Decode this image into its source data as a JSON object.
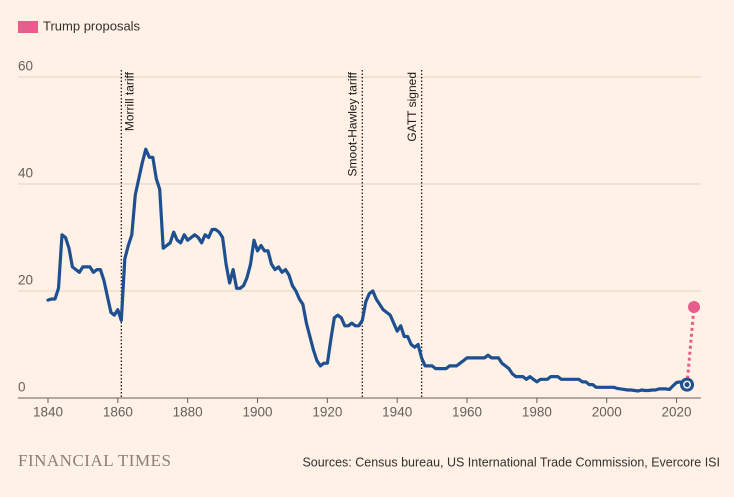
{
  "chart_data": {
    "type": "line",
    "xlim": [
      1840,
      2027
    ],
    "ylim": [
      0,
      60
    ],
    "xticks": [
      1840,
      1860,
      1880,
      1900,
      1920,
      1940,
      1960,
      1980,
      2000,
      2020
    ],
    "yticks": [
      0,
      20,
      40,
      60
    ],
    "grid": true,
    "legend": "top-left",
    "series": [
      {
        "color": "#1d4f91",
        "x": [
          1840,
          1841,
          1842,
          1843,
          1844,
          1845,
          1846,
          1847,
          1848,
          1849,
          1850,
          1851,
          1852,
          1853,
          1854,
          1855,
          1856,
          1857,
          1858,
          1859,
          1860,
          1861,
          1862,
          1863,
          1864,
          1865,
          1866,
          1867,
          1868,
          1869,
          1870,
          1871,
          1872,
          1873,
          1874,
          1875,
          1876,
          1877,
          1878,
          1879,
          1880,
          1881,
          1882,
          1883,
          1884,
          1885,
          1886,
          1887,
          1888,
          1889,
          1890,
          1891,
          1892,
          1893,
          1894,
          1895,
          1896,
          1897,
          1898,
          1899,
          1900,
          1901,
          1902,
          1903,
          1904,
          1905,
          1906,
          1907,
          1908,
          1909,
          1910,
          1911,
          1912,
          1913,
          1914,
          1915,
          1916,
          1917,
          1918,
          1919,
          1920,
          1921,
          1922,
          1923,
          1924,
          1925,
          1926,
          1927,
          1928,
          1929,
          1930,
          1931,
          1932,
          1933,
          1934,
          1935,
          1936,
          1937,
          1938,
          1939,
          1940,
          1941,
          1942,
          1943,
          1944,
          1945,
          1946,
          1947,
          1948,
          1949,
          1950,
          1951,
          1952,
          1953,
          1954,
          1955,
          1956,
          1957,
          1958,
          1959,
          1960,
          1961,
          1962,
          1963,
          1964,
          1965,
          1966,
          1967,
          1968,
          1969,
          1970,
          1971,
          1972,
          1973,
          1974,
          1975,
          1976,
          1977,
          1978,
          1979,
          1980,
          1981,
          1982,
          1983,
          1984,
          1985,
          1986,
          1987,
          1988,
          1989,
          1990,
          1991,
          1992,
          1993,
          1994,
          1995,
          1996,
          1997,
          1998,
          1999,
          2000,
          2001,
          2002,
          2003,
          2004,
          2005,
          2006,
          2007,
          2008,
          2009,
          2010,
          2011,
          2012,
          2013,
          2014,
          2015,
          2016,
          2017,
          2018,
          2019,
          2020,
          2021,
          2022,
          2023
        ],
        "values": [
          18.3,
          18.5,
          18.5,
          20.5,
          30.5,
          30,
          28,
          24.5,
          24,
          23.5,
          24.5,
          24.5,
          24.5,
          23.5,
          24,
          24,
          22,
          19,
          16,
          15.5,
          16.5,
          14.5,
          26,
          28.5,
          30.5,
          38,
          41,
          44,
          46.5,
          45,
          45,
          41,
          39,
          28,
          28.5,
          29,
          31,
          29.5,
          29,
          30.5,
          29.5,
          30,
          30.5,
          30,
          29,
          30.5,
          30,
          31.5,
          31.5,
          31,
          30,
          25,
          21.5,
          24,
          20.5,
          20.5,
          21,
          22.5,
          25,
          29.5,
          27.5,
          28.5,
          27.5,
          27.5,
          25,
          24,
          24.5,
          23.5,
          24,
          23,
          21,
          20,
          18.5,
          17.5,
          14,
          11.5,
          9,
          7,
          6,
          6.5,
          6.5,
          11,
          15,
          15.5,
          15,
          13.5,
          13.5,
          14,
          13.5,
          13.5,
          14.5,
          18,
          19.5,
          20,
          18.5,
          17.5,
          16.5,
          16,
          15.5,
          14,
          12.5,
          13.5,
          11.5,
          11.5,
          10,
          9.5,
          10,
          7.5,
          6,
          6,
          6,
          5.5,
          5.5,
          5.5,
          5.5,
          6,
          6,
          6,
          6.5,
          7,
          7.5,
          7.5,
          7.5,
          7.5,
          7.5,
          7.5,
          8,
          7.5,
          7.5,
          7.5,
          6.5,
          6,
          5.5,
          4.5,
          4,
          4,
          4,
          3.5,
          4,
          3.5,
          3,
          3.5,
          3.5,
          3.5,
          4,
          4,
          4,
          3.5,
          3.5,
          3.5,
          3.5,
          3.5,
          3.5,
          3,
          3,
          2.5,
          2.5,
          2,
          2,
          2,
          2,
          2,
          2,
          1.8,
          1.7,
          1.6,
          1.5,
          1.5,
          1.4,
          1.3,
          1.5,
          1.4,
          1.4,
          1.5,
          1.5,
          1.7,
          1.7,
          1.7,
          1.6,
          2.3,
          2.9,
          3,
          2.7,
          2.5
        ]
      },
      {
        "name": "Trump proposals",
        "color": "#e95d8c",
        "dashed": true,
        "x": [
          2023,
          2025
        ],
        "values": [
          2.5,
          17
        ]
      }
    ],
    "annotations": [
      {
        "x": 1861,
        "text": "Morrill tariff"
      },
      {
        "x": 1930,
        "text": "Smoot-Hawley tariff"
      },
      {
        "x": 1947,
        "text": "GATT signed"
      }
    ],
    "brand": "FINANCIAL TIMES",
    "source": "Sources: Census bureau, US International Trade Commission, Evercore ISI"
  }
}
